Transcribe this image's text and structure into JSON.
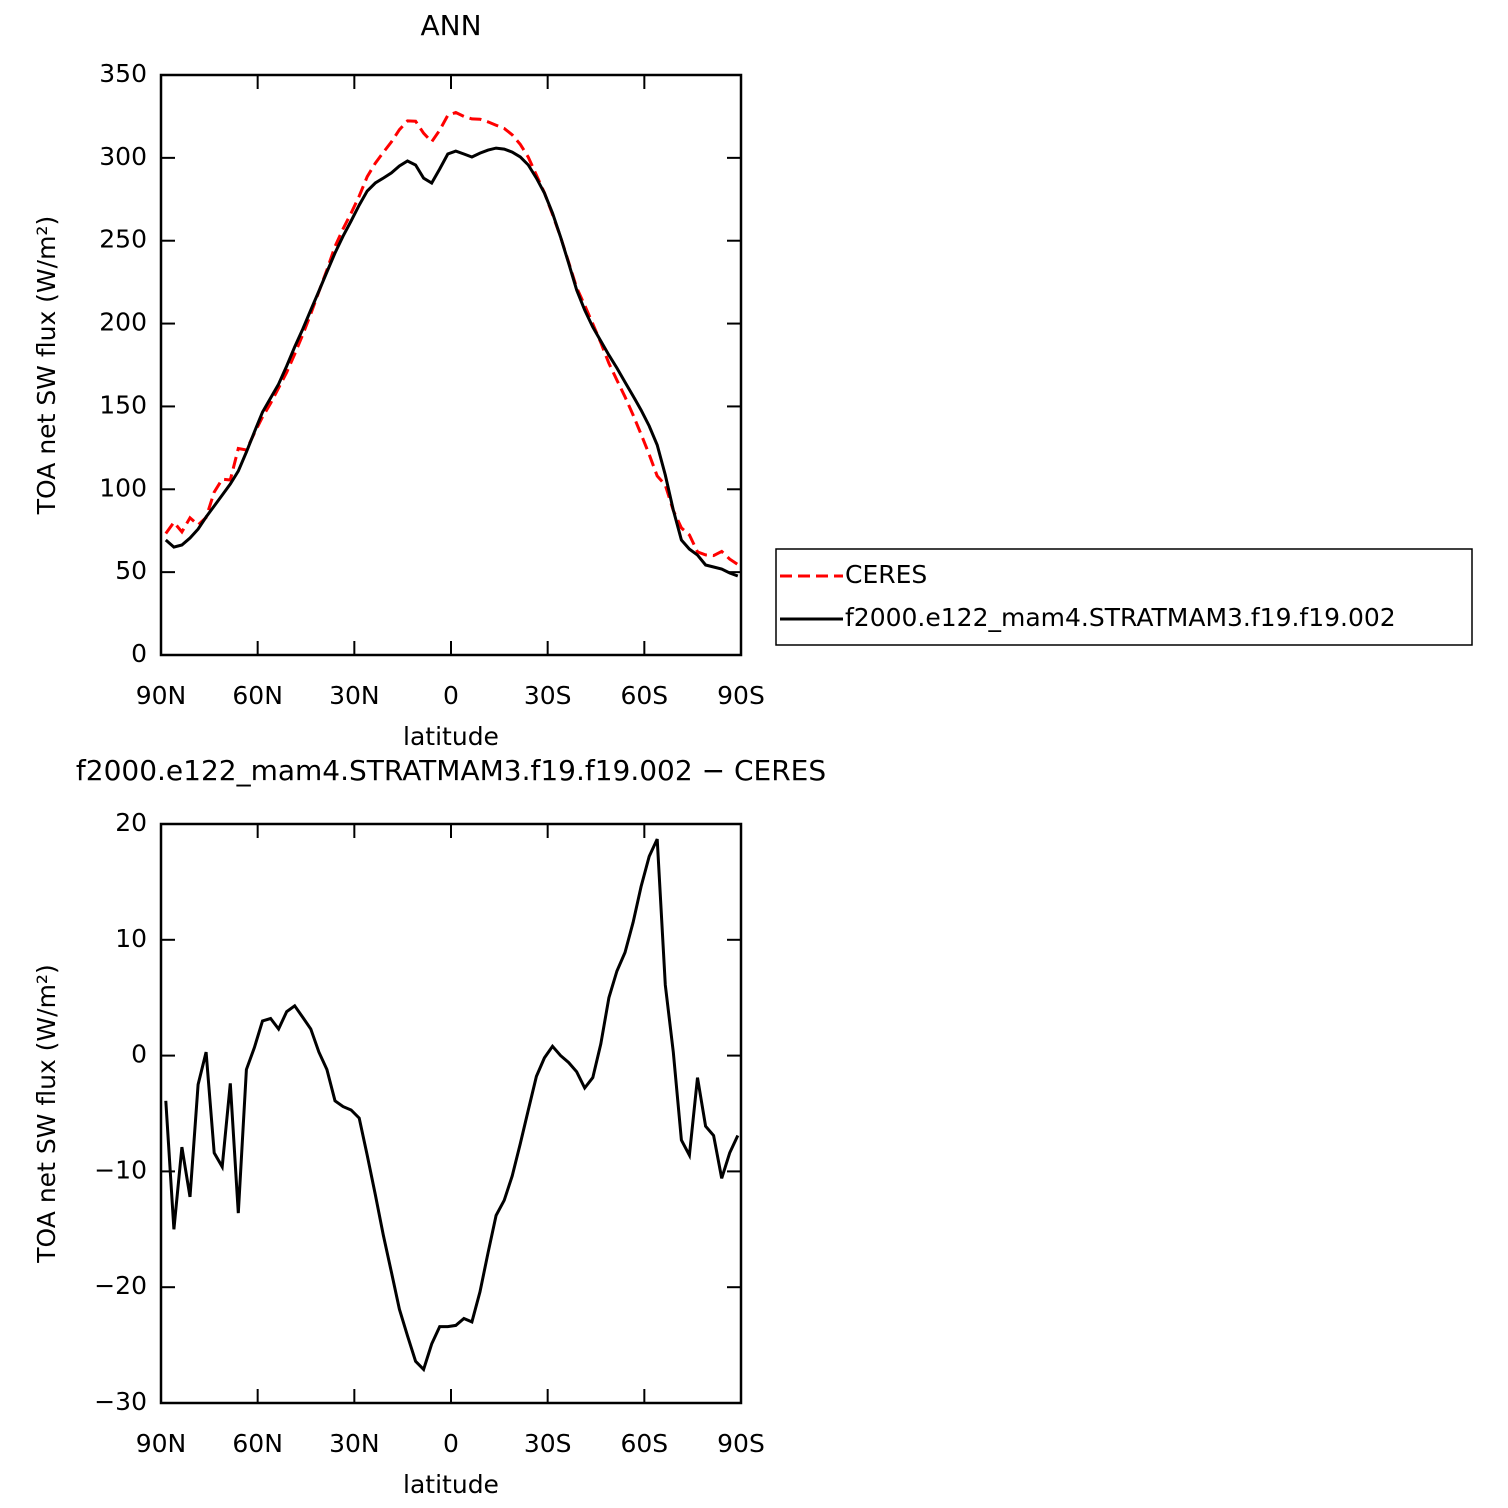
{
  "chart_data": [
    {
      "type": "line",
      "title": "ANN",
      "xlabel": "latitude",
      "ylabel": "TOA net SW flux (W/m²)",
      "x": [
        88.5,
        86,
        83.5,
        81,
        78.5,
        76,
        73.5,
        71,
        68.5,
        66,
        63.5,
        61,
        58.5,
        56,
        53.5,
        51,
        48.5,
        46,
        43.5,
        41,
        38.5,
        36,
        33.5,
        31,
        28.5,
        26,
        23.5,
        21,
        18.5,
        16,
        13.5,
        11,
        8.5,
        6,
        3.5,
        1,
        -1.5,
        -4,
        -6.5,
        -9,
        -11.5,
        -14,
        -16.5,
        -19,
        -21.5,
        -24,
        -26.5,
        -29,
        -31.5,
        -34,
        -36.5,
        -39,
        -41.5,
        -44,
        -46.5,
        -49,
        -51.5,
        -54,
        -56.5,
        -59,
        -61.5,
        -64,
        -66.5,
        -69,
        -71.5,
        -74,
        -76.5,
        -79,
        -81.5,
        -84,
        -86.5,
        -89
      ],
      "series": [
        {
          "name": "CERES",
          "color": "#ff0000",
          "dashed": true,
          "values": [
            73.3,
            80.1,
            74.3,
            82.8,
            78.5,
            83,
            98.3,
            106.1,
            105.6,
            124.6,
            123.7,
            133.9,
            143.6,
            151.9,
            161.2,
            170.6,
            181.6,
            193.4,
            205.9,
            219.3,
            232.3,
            246.5,
            257.2,
            266.6,
            276.9,
            288.6,
            296.8,
            303.3,
            309.6,
            317,
            322.3,
            322.1,
            314.9,
            309.7,
            316.7,
            325.7,
            327.4,
            325,
            323.5,
            323.3,
            321.7,
            319.7,
            317.8,
            313.9,
            308.1,
            300.4,
            289.6,
            279,
            265.9,
            252.2,
            237.1,
            221.6,
            211,
            199.8,
            188.5,
            176,
            165.9,
            155.8,
            144.8,
            133.2,
            121,
            108,
            102.5,
            87.2,
            76.7,
            72.5,
            62.2,
            60.4,
            60,
            62.5,
            57.9,
            54.6
          ]
        },
        {
          "name": "f2000.e122_mam4.STRATMAM3.f19.f19.002",
          "color": "#000000",
          "dashed": false,
          "values": [
            69.4,
            65.1,
            66.4,
            70.6,
            76,
            83.3,
            89.9,
            96.5,
            103.2,
            111,
            122.5,
            134.6,
            146.6,
            155.1,
            163.5,
            174.4,
            185.9,
            196.7,
            208.2,
            219.6,
            231.1,
            242.6,
            252.8,
            261.9,
            271.5,
            280,
            284.8,
            287.8,
            290.9,
            295.1,
            298.1,
            295.7,
            287.8,
            284.8,
            293.3,
            302.3,
            304.1,
            302.3,
            300.5,
            302.9,
            304.7,
            305.9,
            305.3,
            303.5,
            300.5,
            295.7,
            287.8,
            278.8,
            266.7,
            252.2,
            236.5,
            220.2,
            208.2,
            197.9,
            189.5,
            181,
            173.2,
            164.7,
            156.3,
            147.8,
            138.2,
            126.7,
            108.6,
            87.5,
            69.4,
            63.9,
            60.3,
            54.3,
            53.1,
            51.9,
            49.5,
            47.7
          ]
        }
      ],
      "xlim": [
        90,
        -90
      ],
      "xticks": [
        {
          "value": 90,
          "label": "90N"
        },
        {
          "value": 60,
          "label": "60N"
        },
        {
          "value": 30,
          "label": "30N"
        },
        0,
        {
          "value": -30,
          "label": "30S"
        },
        {
          "value": -60,
          "label": "60S"
        },
        {
          "value": -90,
          "label": "90S"
        }
      ],
      "ylim": [
        0,
        350
      ],
      "yticks": [
        0,
        50,
        100,
        150,
        200,
        250,
        300,
        350
      ],
      "legend": "right"
    },
    {
      "type": "line",
      "title": "f2000.e122_mam4.STRATMAM3.f19.f19.002 − CERES",
      "xlabel": "latitude",
      "ylabel": "TOA net SW flux (W/m²)",
      "x": [
        88.5,
        86,
        83.5,
        81,
        78.5,
        76,
        73.5,
        71,
        68.5,
        66,
        63.5,
        61,
        58.5,
        56,
        53.5,
        51,
        48.5,
        46,
        43.5,
        41,
        38.5,
        36,
        33.5,
        31,
        28.5,
        26,
        23.5,
        21,
        18.5,
        16,
        13.5,
        11,
        8.5,
        6,
        3.5,
        1,
        -1.5,
        -4,
        -6.5,
        -9,
        -11.5,
        -14,
        -16.5,
        -19,
        -21.5,
        -24,
        -26.5,
        -29,
        -31.5,
        -34,
        -36.5,
        -39,
        -41.5,
        -44,
        -46.5,
        -49,
        -51.5,
        -54,
        -56.5,
        -59,
        -61.5,
        -64,
        -66.5,
        -69,
        -71.5,
        -74,
        -76.5,
        -79,
        -81.5,
        -84,
        -86.5,
        -89
      ],
      "series": [
        {
          "color": "#000000",
          "dashed": false,
          "values": [
            -3.9,
            -15,
            -7.9,
            -12.2,
            -2.5,
            0.3,
            -8.4,
            -9.6,
            -2.4,
            -13.6,
            -1.2,
            0.7,
            3,
            3.2,
            2.3,
            3.8,
            4.3,
            3.3,
            2.3,
            0.3,
            -1.2,
            -3.9,
            -4.4,
            -4.7,
            -5.4,
            -8.6,
            -12,
            -15.5,
            -18.7,
            -21.9,
            -24.2,
            -26.4,
            -27.1,
            -24.9,
            -23.4,
            -23.4,
            -23.3,
            -22.7,
            -23,
            -20.4,
            -17,
            -13.8,
            -12.5,
            -10.4,
            -7.6,
            -4.7,
            -1.8,
            -0.2,
            0.8,
            0,
            -0.6,
            -1.4,
            -2.8,
            -1.9,
            1,
            5,
            7.3,
            8.9,
            11.5,
            14.6,
            17.2,
            18.7,
            6.1,
            0.3,
            -7.3,
            -8.6,
            -1.9,
            -6.1,
            -6.9,
            -10.6,
            -8.4,
            -6.9
          ]
        }
      ],
      "xlim": [
        90,
        -90
      ],
      "xticks": [
        {
          "value": 90,
          "label": "90N"
        },
        {
          "value": 60,
          "label": "60N"
        },
        {
          "value": 30,
          "label": "30N"
        },
        0,
        {
          "value": -30,
          "label": "30S"
        },
        {
          "value": -60,
          "label": "60S"
        },
        {
          "value": -90,
          "label": "90S"
        }
      ],
      "ylim": [
        -30,
        20
      ],
      "yticks": [
        {
          "value": -30,
          "label": "−30"
        },
        {
          "value": -20,
          "label": "−20"
        },
        {
          "value": -10,
          "label": "−10"
        },
        0,
        10,
        20
      ]
    }
  ]
}
